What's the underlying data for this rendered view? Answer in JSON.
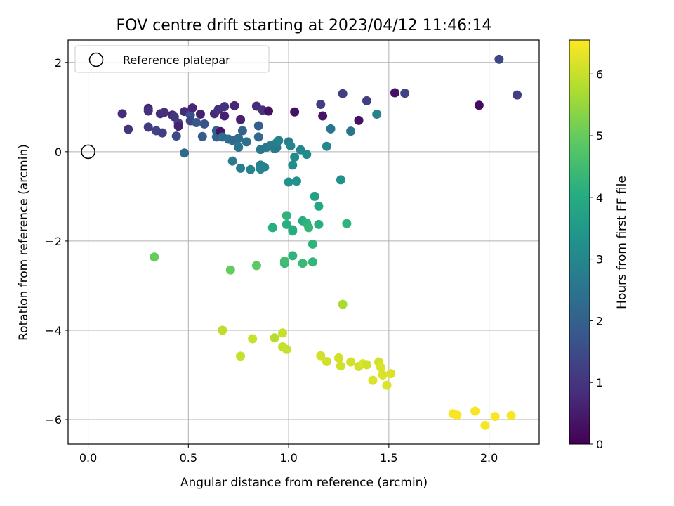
{
  "chart_data": {
    "type": "scatter",
    "title": "FOV centre drift starting at 2023/04/12 11:46:14",
    "xlabel": "Angular distance from reference (arcmin)",
    "ylabel": "Rotation from reference (arcmin)",
    "xlim": [
      -0.1,
      2.25
    ],
    "ylim": [
      -6.55,
      2.5
    ],
    "xticks": [
      0.0,
      0.5,
      1.0,
      1.5,
      2.0
    ],
    "xtick_labels": [
      "0.0",
      "0.5",
      "1.0",
      "1.5",
      "2.0"
    ],
    "yticks": [
      -6,
      -4,
      -2,
      0,
      2
    ],
    "ytick_labels": [
      "−6",
      "−4",
      "−2",
      "0",
      "2"
    ],
    "grid": true,
    "legend": {
      "placement": "top-left",
      "entries": [
        "Reference platepar"
      ]
    },
    "reference_point": {
      "x": 0.0,
      "y": 0.0
    },
    "colorbar": {
      "label": "Hours from first FF file",
      "colormap": "viridis",
      "range": [
        0,
        6.55
      ],
      "ticks": [
        0,
        1,
        2,
        3,
        4,
        5,
        6
      ],
      "tick_labels": [
        "0",
        "1",
        "2",
        "3",
        "4",
        "5",
        "6"
      ]
    },
    "points": [
      {
        "x": 0.17,
        "y": 0.85,
        "hours": 0.8
      },
      {
        "x": 0.2,
        "y": 0.5,
        "hours": 1.0
      },
      {
        "x": 0.3,
        "y": 0.97,
        "hours": 0.7
      },
      {
        "x": 0.3,
        "y": 0.91,
        "hours": 0.9
      },
      {
        "x": 0.3,
        "y": 0.55,
        "hours": 1.1
      },
      {
        "x": 0.34,
        "y": 0.47,
        "hours": 1.3
      },
      {
        "x": 0.36,
        "y": 0.85,
        "hours": 0.8
      },
      {
        "x": 0.37,
        "y": 0.42,
        "hours": 1.2
      },
      {
        "x": 0.38,
        "y": 0.88,
        "hours": 0.9
      },
      {
        "x": 0.42,
        "y": 0.82,
        "hours": 0.7
      },
      {
        "x": 0.43,
        "y": 0.78,
        "hours": 1.0
      },
      {
        "x": 0.44,
        "y": 0.35,
        "hours": 1.5
      },
      {
        "x": 0.45,
        "y": 0.64,
        "hours": 1.1
      },
      {
        "x": 0.45,
        "y": 0.57,
        "hours": 0.6
      },
      {
        "x": 0.48,
        "y": -0.03,
        "hours": 2.2
      },
      {
        "x": 0.48,
        "y": 0.9,
        "hours": 0.8
      },
      {
        "x": 0.51,
        "y": 0.82,
        "hours": 1.6
      },
      {
        "x": 0.51,
        "y": 0.69,
        "hours": 1.4
      },
      {
        "x": 0.52,
        "y": 0.98,
        "hours": 0.7
      },
      {
        "x": 0.54,
        "y": 0.65,
        "hours": 1.8
      },
      {
        "x": 0.56,
        "y": 0.84,
        "hours": 0.6
      },
      {
        "x": 0.57,
        "y": 0.34,
        "hours": 1.9
      },
      {
        "x": 0.58,
        "y": 0.62,
        "hours": 1.7
      },
      {
        "x": 0.63,
        "y": 0.85,
        "hours": 0.8
      },
      {
        "x": 0.64,
        "y": 0.47,
        "hours": 2.0
      },
      {
        "x": 0.64,
        "y": 0.33,
        "hours": 2.1
      },
      {
        "x": 0.65,
        "y": 0.95,
        "hours": 0.9
      },
      {
        "x": 0.66,
        "y": 0.45,
        "hours": 0.4
      },
      {
        "x": 0.67,
        "y": 0.33,
        "hours": 2.3
      },
      {
        "x": 0.68,
        "y": 1.01,
        "hours": 0.9
      },
      {
        "x": 0.68,
        "y": 0.8,
        "hours": 0.6
      },
      {
        "x": 0.7,
        "y": 0.28,
        "hours": 2.4
      },
      {
        "x": 0.72,
        "y": -0.21,
        "hours": 2.7
      },
      {
        "x": 0.72,
        "y": 0.25,
        "hours": 2.2
      },
      {
        "x": 0.73,
        "y": 1.03,
        "hours": 0.7
      },
      {
        "x": 0.75,
        "y": 0.3,
        "hours": 2.3
      },
      {
        "x": 0.75,
        "y": 0.1,
        "hours": 2.5
      },
      {
        "x": 0.76,
        "y": -0.37,
        "hours": 2.8
      },
      {
        "x": 0.76,
        "y": 0.72,
        "hours": 0.6
      },
      {
        "x": 0.77,
        "y": 0.47,
        "hours": 2.1
      },
      {
        "x": 0.79,
        "y": 0.22,
        "hours": 2.4
      },
      {
        "x": 0.81,
        "y": -0.4,
        "hours": 2.9
      },
      {
        "x": 0.84,
        "y": 1.02,
        "hours": 0.8
      },
      {
        "x": 0.85,
        "y": 0.58,
        "hours": 2.0
      },
      {
        "x": 0.85,
        "y": 0.33,
        "hours": 2.2
      },
      {
        "x": 0.86,
        "y": 0.05,
        "hours": 2.6
      },
      {
        "x": 0.86,
        "y": -0.3,
        "hours": 2.8
      },
      {
        "x": 0.86,
        "y": -0.39,
        "hours": 3.0
      },
      {
        "x": 0.87,
        "y": 0.93,
        "hours": 0.9
      },
      {
        "x": 0.88,
        "y": -0.35,
        "hours": 2.9
      },
      {
        "x": 0.89,
        "y": 0.1,
        "hours": 2.6
      },
      {
        "x": 0.9,
        "y": 0.91,
        "hours": 0.3
      },
      {
        "x": 0.91,
        "y": 0.14,
        "hours": 2.7
      },
      {
        "x": 0.92,
        "y": -1.7,
        "hours": 4.1
      },
      {
        "x": 0.93,
        "y": 0.07,
        "hours": 2.7
      },
      {
        "x": 0.94,
        "y": 0.09,
        "hours": 2.6
      },
      {
        "x": 0.94,
        "y": 0.2,
        "hours": 2.8
      },
      {
        "x": 0.95,
        "y": 0.25,
        "hours": 2.9
      },
      {
        "x": 0.98,
        "y": -2.5,
        "hours": 4.3
      },
      {
        "x": 0.98,
        "y": -2.45,
        "hours": 4.5
      },
      {
        "x": 0.99,
        "y": -1.63,
        "hours": 4.1
      },
      {
        "x": 0.99,
        "y": -1.43,
        "hours": 4.2
      },
      {
        "x": 1.0,
        "y": -0.68,
        "hours": 3.3
      },
      {
        "x": 1.0,
        "y": 0.22,
        "hours": 2.8
      },
      {
        "x": 1.01,
        "y": 0.13,
        "hours": 3.0
      },
      {
        "x": 1.02,
        "y": -2.33,
        "hours": 4.2
      },
      {
        "x": 1.02,
        "y": -1.78,
        "hours": 4.3
      },
      {
        "x": 1.02,
        "y": -1.75,
        "hours": 4.0
      },
      {
        "x": 1.02,
        "y": -0.3,
        "hours": 3.2
      },
      {
        "x": 1.03,
        "y": -0.12,
        "hours": 3.1
      },
      {
        "x": 1.03,
        "y": 0.89,
        "hours": 0.3
      },
      {
        "x": 1.04,
        "y": -0.66,
        "hours": 3.3
      },
      {
        "x": 1.06,
        "y": 0.04,
        "hours": 3.0
      },
      {
        "x": 1.07,
        "y": -2.5,
        "hours": 4.4
      },
      {
        "x": 1.07,
        "y": -1.55,
        "hours": 4.0
      },
      {
        "x": 1.09,
        "y": -1.6,
        "hours": 4.2
      },
      {
        "x": 1.09,
        "y": -0.06,
        "hours": 3.1
      },
      {
        "x": 1.1,
        "y": -1.7,
        "hours": 4.3
      },
      {
        "x": 1.12,
        "y": -2.07,
        "hours": 4.2
      },
      {
        "x": 1.12,
        "y": -2.47,
        "hours": 4.3
      },
      {
        "x": 1.13,
        "y": -1.0,
        "hours": 3.7
      },
      {
        "x": 1.15,
        "y": -1.22,
        "hours": 3.9
      },
      {
        "x": 1.15,
        "y": -1.63,
        "hours": 4.1
      },
      {
        "x": 1.16,
        "y": 1.06,
        "hours": 1.2
      },
      {
        "x": 1.17,
        "y": 0.8,
        "hours": 0.4
      },
      {
        "x": 1.19,
        "y": 0.12,
        "hours": 3.0
      },
      {
        "x": 1.21,
        "y": 0.51,
        "hours": 2.5
      },
      {
        "x": 1.26,
        "y": -0.63,
        "hours": 3.3
      },
      {
        "x": 1.27,
        "y": 1.3,
        "hours": 1.2
      },
      {
        "x": 1.27,
        "y": -3.42,
        "hours": 5.7
      },
      {
        "x": 1.29,
        "y": -1.61,
        "hours": 4.2
      },
      {
        "x": 1.31,
        "y": 0.46,
        "hours": 2.5
      },
      {
        "x": 1.35,
        "y": 0.7,
        "hours": 0.3
      },
      {
        "x": 1.39,
        "y": 1.14,
        "hours": 1.2
      },
      {
        "x": 1.44,
        "y": 0.84,
        "hours": 2.9
      },
      {
        "x": 1.53,
        "y": 1.32,
        "hours": 0.3
      },
      {
        "x": 1.58,
        "y": 1.31,
        "hours": 1.3
      },
      {
        "x": 1.95,
        "y": 1.04,
        "hours": 0.2
      },
      {
        "x": 2.05,
        "y": 2.07,
        "hours": 1.4
      },
      {
        "x": 2.14,
        "y": 1.27,
        "hours": 1.2
      },
      {
        "x": 0.33,
        "y": -2.36,
        "hours": 5.0
      },
      {
        "x": 0.71,
        "y": -2.65,
        "hours": 5.0
      },
      {
        "x": 0.84,
        "y": -2.55,
        "hours": 4.9
      },
      {
        "x": 0.67,
        "y": -4.0,
        "hours": 5.9
      },
      {
        "x": 0.76,
        "y": -4.58,
        "hours": 6.0
      },
      {
        "x": 0.82,
        "y": -4.19,
        "hours": 6.0
      },
      {
        "x": 0.93,
        "y": -4.17,
        "hours": 5.8
      },
      {
        "x": 0.97,
        "y": -4.06,
        "hours": 6.0
      },
      {
        "x": 0.97,
        "y": -4.37,
        "hours": 6.0
      },
      {
        "x": 0.99,
        "y": -4.43,
        "hours": 6.0
      },
      {
        "x": 1.16,
        "y": -4.57,
        "hours": 6.1
      },
      {
        "x": 1.19,
        "y": -4.7,
        "hours": 6.1
      },
      {
        "x": 1.25,
        "y": -4.62,
        "hours": 6.1
      },
      {
        "x": 1.26,
        "y": -4.8,
        "hours": 6.1
      },
      {
        "x": 1.31,
        "y": -4.71,
        "hours": 6.1
      },
      {
        "x": 1.35,
        "y": -4.81,
        "hours": 6.1
      },
      {
        "x": 1.37,
        "y": -4.75,
        "hours": 6.2
      },
      {
        "x": 1.39,
        "y": -4.77,
        "hours": 6.1
      },
      {
        "x": 1.42,
        "y": -5.12,
        "hours": 6.2
      },
      {
        "x": 1.45,
        "y": -4.71,
        "hours": 6.1
      },
      {
        "x": 1.46,
        "y": -4.83,
        "hours": 6.2
      },
      {
        "x": 1.47,
        "y": -5.0,
        "hours": 6.2
      },
      {
        "x": 1.49,
        "y": -5.23,
        "hours": 6.2
      },
      {
        "x": 1.51,
        "y": -4.97,
        "hours": 6.2
      },
      {
        "x": 1.82,
        "y": -5.87,
        "hours": 6.5
      },
      {
        "x": 1.84,
        "y": -5.9,
        "hours": 6.5
      },
      {
        "x": 1.93,
        "y": -5.81,
        "hours": 6.5
      },
      {
        "x": 1.98,
        "y": -6.13,
        "hours": 6.5
      },
      {
        "x": 2.03,
        "y": -5.93,
        "hours": 6.5
      },
      {
        "x": 2.11,
        "y": -5.91,
        "hours": 6.5
      }
    ]
  }
}
